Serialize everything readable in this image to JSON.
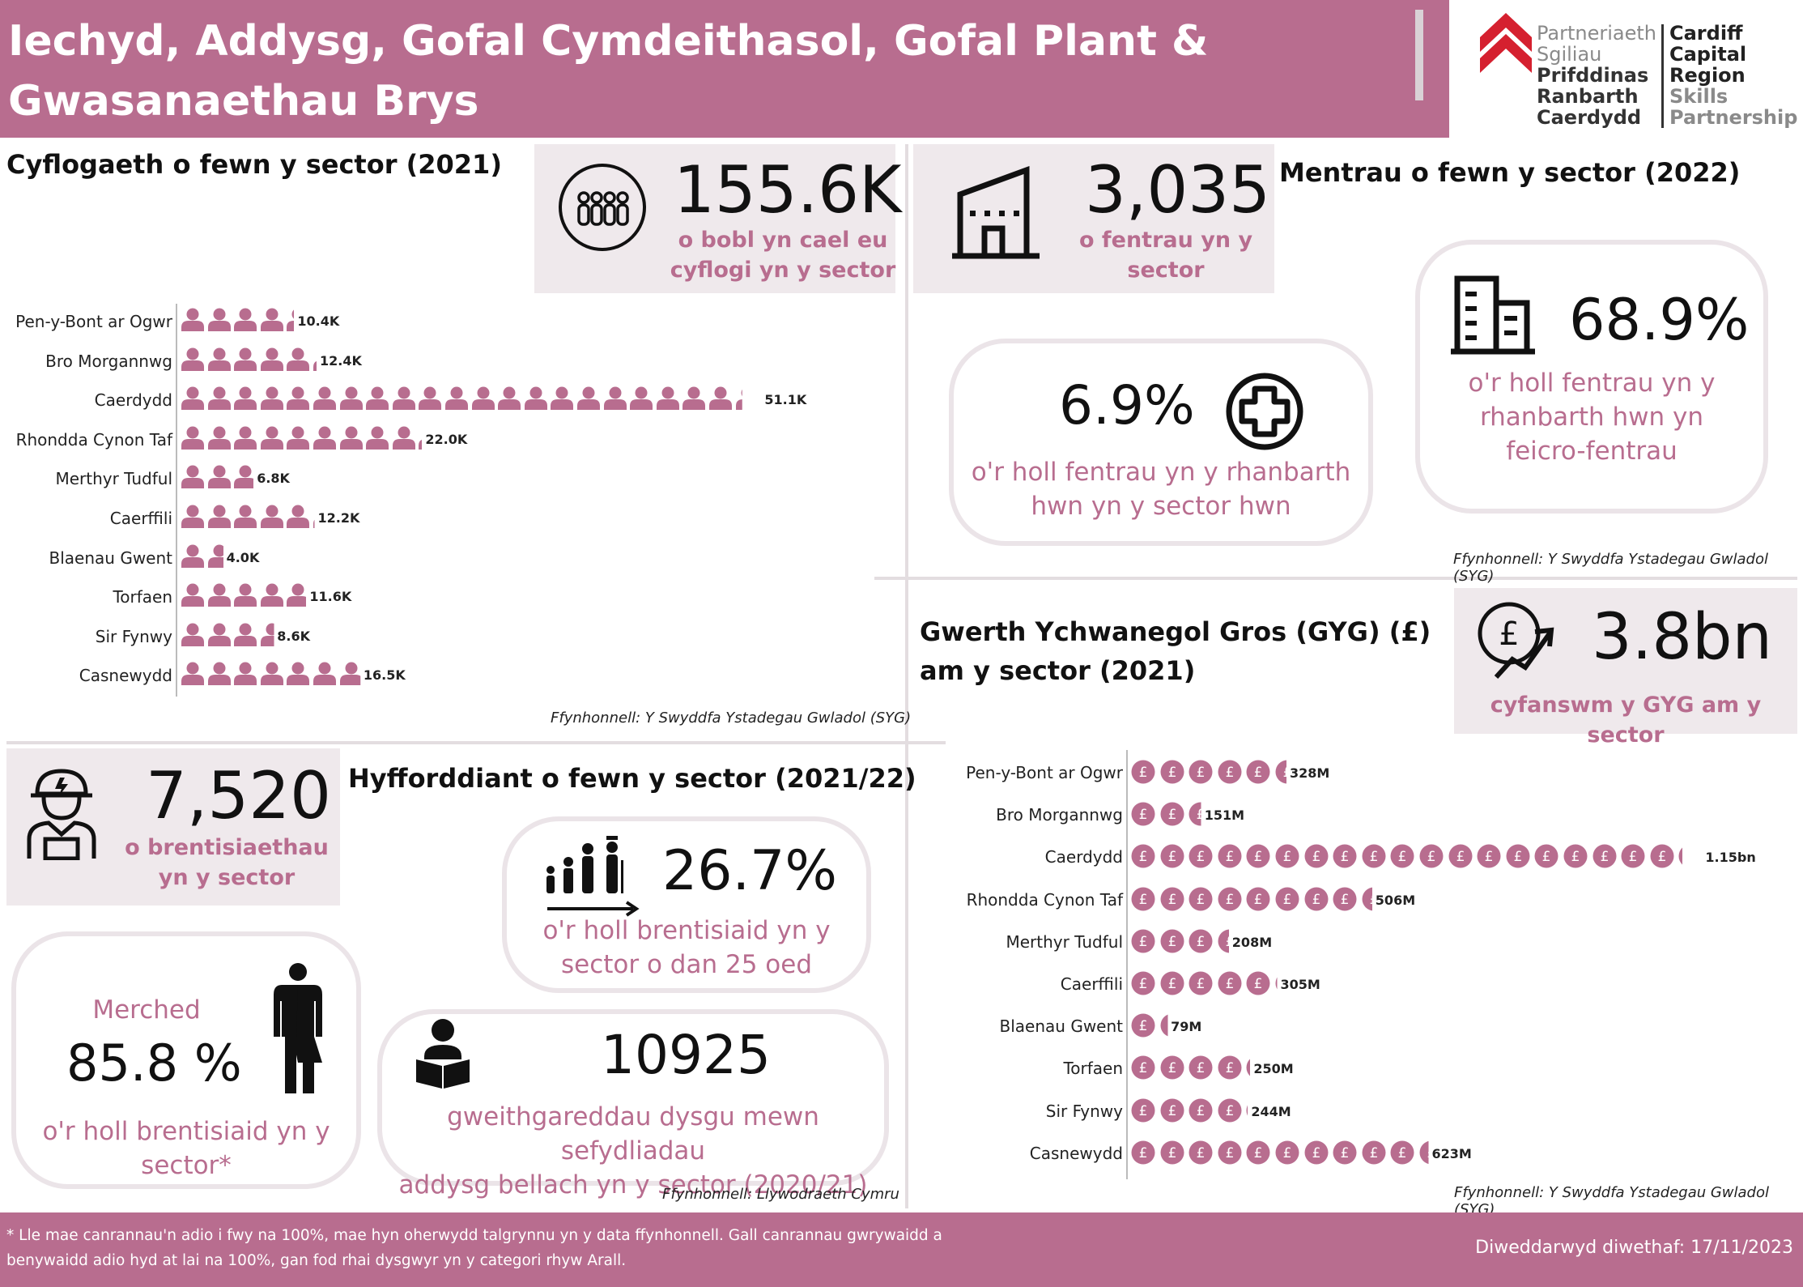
{
  "header": {
    "title": "Iechyd, Addysg, Gofal Cymdeithasol, Gofal Plant & Gwasanaethau Brys"
  },
  "logo": {
    "welsh_lines": [
      "Partneriaeth",
      "Sgiliau",
      "Prifddinas",
      "Ranbarth",
      "Caerdydd"
    ],
    "english_lines": [
      "Cardiff",
      "Capital",
      "Region",
      "Skills",
      "Partnership"
    ]
  },
  "employment": {
    "title": "Cyflogaeth o fewn y sector (2021)",
    "kpi_value": "155.6K",
    "kpi_text_1": "o bobl yn cael eu",
    "kpi_text_2": "cyflogi yn y sector",
    "icon": "people-group-icon",
    "source": "Ffynhonnell: Y Swyddfa Ystadegau Gwladol (SYG)"
  },
  "enterprises": {
    "title": "Mentrau o fewn y sector (2022)",
    "kpi_value": "3,035",
    "kpi_text_1": "o fentrau yn y",
    "kpi_text_2": "sector",
    "icon": "factory-icon",
    "card1_value": "6.9%",
    "card1_text_1": "o'r holl fentrau yn y rhanbarth",
    "card1_text_2": "hwn yn y sector hwn",
    "card1_icon": "medical-cross-icon",
    "card2_value": "68.9%",
    "card2_text_1": "o'r holl fentrau yn y",
    "card2_text_2": "rhanbarth hwn yn",
    "card2_text_3": "feicro-fentrau",
    "card2_icon": "office-building-icon",
    "source": "Ffynhonnell: Y Swyddfa Ystadegau Gwladol (SYG)"
  },
  "gva": {
    "title_1": "Gwerth Ychwanegol Gros (GYG) (£)",
    "title_2": "am y sector (2021)",
    "kpi_value": "3.8bn",
    "kpi_text": "cyfanswm y GYG am y sector",
    "icon": "pound-growth-icon",
    "source": "Ffynhonnell: Y Swyddfa Ystadegau Gwladol (SYG)"
  },
  "training": {
    "title": "Hyfforddiant o fewn y sector (2021/22)",
    "kpi_value": "7,520",
    "kpi_text_1": "o brentisiaethau",
    "kpi_text_2": "yn y sector",
    "icon": "worker-helmet-icon",
    "under25_value": "26.7%",
    "under25_text_1": "o'r holl brentisiaid yn y",
    "under25_text_2": "sector o dan 25 oed",
    "under25_icon": "age-progression-icon",
    "women_label": "Merched",
    "women_value": "85.8 %",
    "women_text_1": "o'r holl brentisiaid yn y",
    "women_text_2": "sector*",
    "women_icon": "gender-icon",
    "fe_value": "10925",
    "fe_text_1": "gweithgareddau dysgu mewn sefydliadau",
    "fe_text_2": "addysg bellach yn y sector (2020/21)",
    "fe_icon": "reading-person-icon",
    "source": "Ffynhonnell: Llywodraeth Cymru"
  },
  "footer": {
    "note_1": "* Lle mae canrannau'n adio i fwy na 100%, mae hyn oherwydd talgrynnu yn y data ffynhonnell. Gall canrannau gwrywaidd a",
    "note_2": "benywaidd adio hyd at lai na 100%, gan fod rhai dysgwyr yn y categori rhyw Arall.",
    "updated": "Diweddarwyd diwethaf: 17/11/2023"
  },
  "colors": {
    "brand_pink": "#b86d8f",
    "panel_grey": "#efe9ec",
    "logo_red": "#d5202f"
  },
  "chart_data": [
    {
      "type": "bar",
      "orientation": "horizontal",
      "pictogram": "person-icon",
      "categories": [
        "Pen-y-Bont ar Ogwr",
        "Bro Morgannwg",
        "Caerdydd",
        "Rhondda Cynon Taf",
        "Merthyr Tudful",
        "Caerffili",
        "Blaenau Gwent",
        "Torfaen",
        "Sir Fynwy",
        "Casnewydd"
      ],
      "values": [
        10.4,
        12.4,
        51.1,
        22.0,
        6.8,
        12.2,
        4.0,
        11.6,
        8.6,
        16.5
      ],
      "value_labels": [
        "10.4K",
        "12.4K",
        "51.1K",
        "22.0K",
        "6.8K",
        "12.2K",
        "4.0K",
        "11.6K",
        "8.6K",
        "16.5K"
      ],
      "units_per_icon": 2.4,
      "title": "",
      "grid": false
    },
    {
      "type": "bar",
      "orientation": "horizontal",
      "pictogram": "pound-coin-icon",
      "categories": [
        "Pen-y-Bont ar Ogwr",
        "Bro Morgannwg",
        "Caerdydd",
        "Rhondda Cynon Taf",
        "Merthyr Tudful",
        "Caerffili",
        "Blaenau Gwent",
        "Torfaen",
        "Sir Fynwy",
        "Casnewydd"
      ],
      "values": [
        328,
        151,
        1150,
        506,
        208,
        305,
        79,
        250,
        244,
        623
      ],
      "value_labels": [
        "328M",
        "151M",
        "1.15bn",
        "506M",
        "208M",
        "305M",
        "79M",
        "250M",
        "244M",
        "623M"
      ],
      "units_per_icon": 60,
      "title": "",
      "grid": false
    }
  ]
}
